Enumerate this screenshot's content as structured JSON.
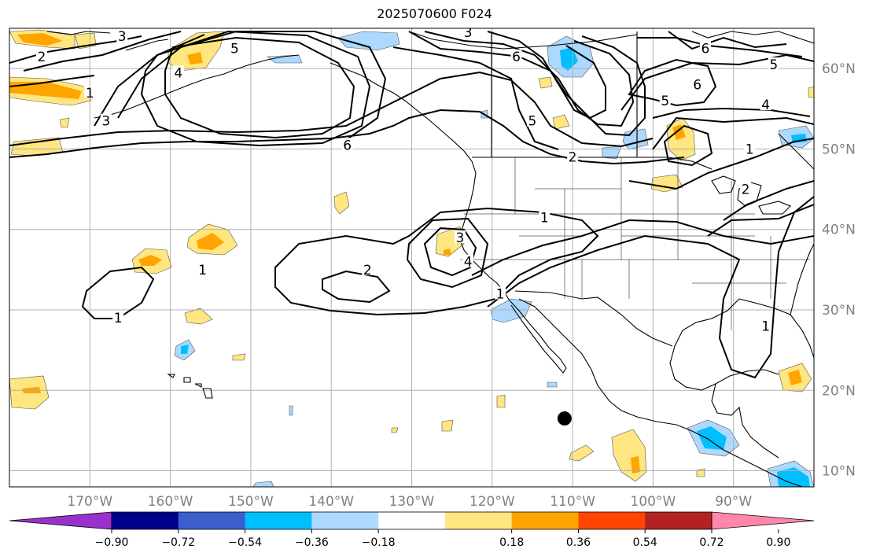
{
  "map": {
    "title": "2025070600 F024",
    "projection": "plate-carree",
    "extent": {
      "lon_min": -180,
      "lon_max": -80,
      "lat_min": 8,
      "lat_max": 65
    },
    "lon_ticks": [
      {
        "value": -170,
        "label": "170°W"
      },
      {
        "value": -160,
        "label": "160°W"
      },
      {
        "value": -150,
        "label": "150°W"
      },
      {
        "value": -140,
        "label": "140°W"
      },
      {
        "value": -130,
        "label": "130°W"
      },
      {
        "value": -120,
        "label": "120°W"
      },
      {
        "value": -110,
        "label": "110°W"
      },
      {
        "value": -100,
        "label": "100°W"
      },
      {
        "value": -90,
        "label": "90°W"
      }
    ],
    "lat_ticks": [
      {
        "value": 60,
        "label": "60°N"
      },
      {
        "value": 50,
        "label": "50°N"
      },
      {
        "value": 40,
        "label": "40°N"
      },
      {
        "value": 30,
        "label": "30°N"
      },
      {
        "value": 20,
        "label": "20°N"
      },
      {
        "value": 10,
        "label": "10°N"
      }
    ],
    "gridlines": true,
    "marker": {
      "lon": -111,
      "lat": 16.5,
      "color": "#000000"
    },
    "contour_labels": [
      {
        "text": "3",
        "lon": -166,
        "lat": 64
      },
      {
        "text": "2",
        "lon": -176,
        "lat": 61.5
      },
      {
        "text": "5",
        "lon": -152,
        "lat": 62.5
      },
      {
        "text": "4",
        "lon": -159,
        "lat": 59.5
      },
      {
        "text": "3",
        "lon": -168,
        "lat": 53.5
      },
      {
        "text": "1",
        "lon": -170,
        "lat": 57
      },
      {
        "text": "6",
        "lon": -138,
        "lat": 50.5
      },
      {
        "text": "3",
        "lon": -123,
        "lat": 64.5
      },
      {
        "text": "6",
        "lon": -117,
        "lat": 61.5
      },
      {
        "text": "5",
        "lon": -115,
        "lat": 53.5
      },
      {
        "text": "2",
        "lon": -110,
        "lat": 49
      },
      {
        "text": "6",
        "lon": -93.5,
        "lat": 62.5
      },
      {
        "text": "5",
        "lon": -85,
        "lat": 60.5
      },
      {
        "text": "6",
        "lon": -94.5,
        "lat": 58
      },
      {
        "text": "5",
        "lon": -98.5,
        "lat": 56
      },
      {
        "text": "4",
        "lon": -86,
        "lat": 55.5
      },
      {
        "text": "1",
        "lon": -88,
        "lat": 50
      },
      {
        "text": "2",
        "lon": -88.5,
        "lat": 45
      },
      {
        "text": "3",
        "lon": -124,
        "lat": 39
      },
      {
        "text": "4",
        "lon": -123,
        "lat": 36
      },
      {
        "text": "2",
        "lon": -135.5,
        "lat": 35
      },
      {
        "text": "1",
        "lon": -119,
        "lat": 32
      },
      {
        "text": "1",
        "lon": -113.5,
        "lat": 41.5
      },
      {
        "text": "1",
        "lon": -166.5,
        "lat": 29
      },
      {
        "text": "1",
        "lon": -86,
        "lat": 28
      },
      {
        "text": "1",
        "lon": -156,
        "lat": 35
      }
    ]
  },
  "colorbar": {
    "ticks": [
      {
        "value": -0.9,
        "label": "−0.90"
      },
      {
        "value": -0.72,
        "label": "−0.72"
      },
      {
        "value": -0.54,
        "label": "−0.54"
      },
      {
        "value": -0.36,
        "label": "−0.36"
      },
      {
        "value": -0.18,
        "label": "−0.18"
      },
      {
        "value": 0.18,
        "label": "0.18"
      },
      {
        "value": 0.36,
        "label": "0.36"
      },
      {
        "value": 0.54,
        "label": "0.54"
      },
      {
        "value": 0.72,
        "label": "0.72"
      },
      {
        "value": 0.9,
        "label": "0.90"
      }
    ],
    "colors": [
      "#9932cc",
      "#00008b",
      "#3a5fcd",
      "#00bfff",
      "#add8ff",
      "#ffffff",
      "#ffe680",
      "#ffa500",
      "#ff4500",
      "#b22222",
      "#ff88aa"
    ]
  },
  "colors": {
    "light_blue": "#add8ff",
    "blue": "#00bfff",
    "yellow": "#ffe680",
    "orange": "#ffa500",
    "grid": "#b0b0b0",
    "contour": "#000000"
  }
}
